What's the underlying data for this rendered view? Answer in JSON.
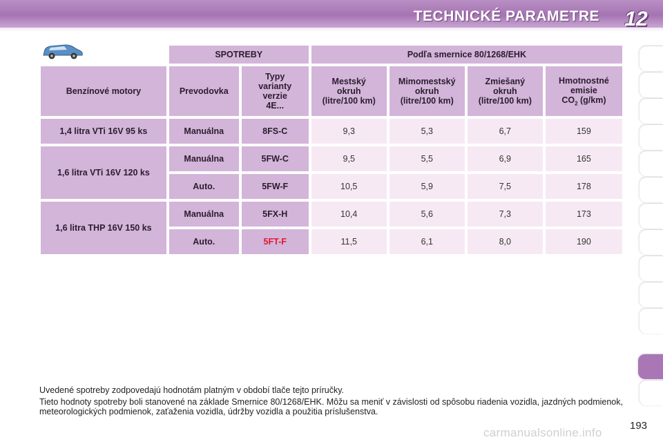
{
  "header": {
    "title": "TECHNICKÉ PARAMETRE",
    "chapter": "12"
  },
  "table": {
    "group_headers": [
      "SPOTREBY",
      "Podľa smernice 80/1268/EHK"
    ],
    "col_engine": "Benzínové motory",
    "col_gearbox": "Prevodovka",
    "col_type": [
      "Typy",
      "varianty",
      "verzie",
      "4E..."
    ],
    "col_urban": [
      "Mestský",
      "okruh",
      "(litre/100 km)"
    ],
    "col_extra": [
      "Mimomestský",
      "okruh",
      "(litre/100 km)"
    ],
    "col_mixed": [
      "Zmiešaný",
      "okruh",
      "(litre/100 km)"
    ],
    "col_co2": [
      "Hmotnostné",
      "emisie"
    ],
    "col_co2_co": "CO",
    "col_co2_sub": "2",
    "col_co2_unit": " (g/km)",
    "engines": [
      "1,4 litra VTi 16V 95 ks",
      "1,6 litra VTi 16V 120 ks",
      "1,6 litra THP 16V 150 ks"
    ],
    "rows": [
      {
        "gearbox": "Manuálna",
        "type": "8FS-C",
        "urban": "9,3",
        "extra": "5,3",
        "mixed": "6,7",
        "co2": "159"
      },
      {
        "gearbox": "Manuálna",
        "type": "5FW-C",
        "urban": "9,5",
        "extra": "5,5",
        "mixed": "6,9",
        "co2": "165"
      },
      {
        "gearbox": "Auto.",
        "type": "5FW-F",
        "urban": "10,5",
        "extra": "5,9",
        "mixed": "7,5",
        "co2": "178"
      },
      {
        "gearbox": "Manuálna",
        "type": "5FX-H",
        "urban": "10,4",
        "extra": "5,6",
        "mixed": "7,3",
        "co2": "173"
      },
      {
        "gearbox": "Auto.",
        "type": "5FT-F",
        "urban": "11,5",
        "extra": "6,1",
        "mixed": "8,0",
        "co2": "190"
      }
    ],
    "highlight_color": "#e0182d"
  },
  "notes": [
    "Uvedené spotreby zodpovedajú hodnotám platným v období tlače tejto príručky.",
    "Tieto hodnoty spotreby boli stanovené na základe Smernice 80/1268/EHK. Môžu sa meniť v závislosti od spôsobu riadenia vozidla, jazdných podmienok, meteorologických podmienok, zaťaženia vozidla, údržby vozidla a použitia príslušenstva."
  ],
  "page_number": "193",
  "watermark": "carmanualsonline.info",
  "icons": {
    "car": "car-icon"
  }
}
